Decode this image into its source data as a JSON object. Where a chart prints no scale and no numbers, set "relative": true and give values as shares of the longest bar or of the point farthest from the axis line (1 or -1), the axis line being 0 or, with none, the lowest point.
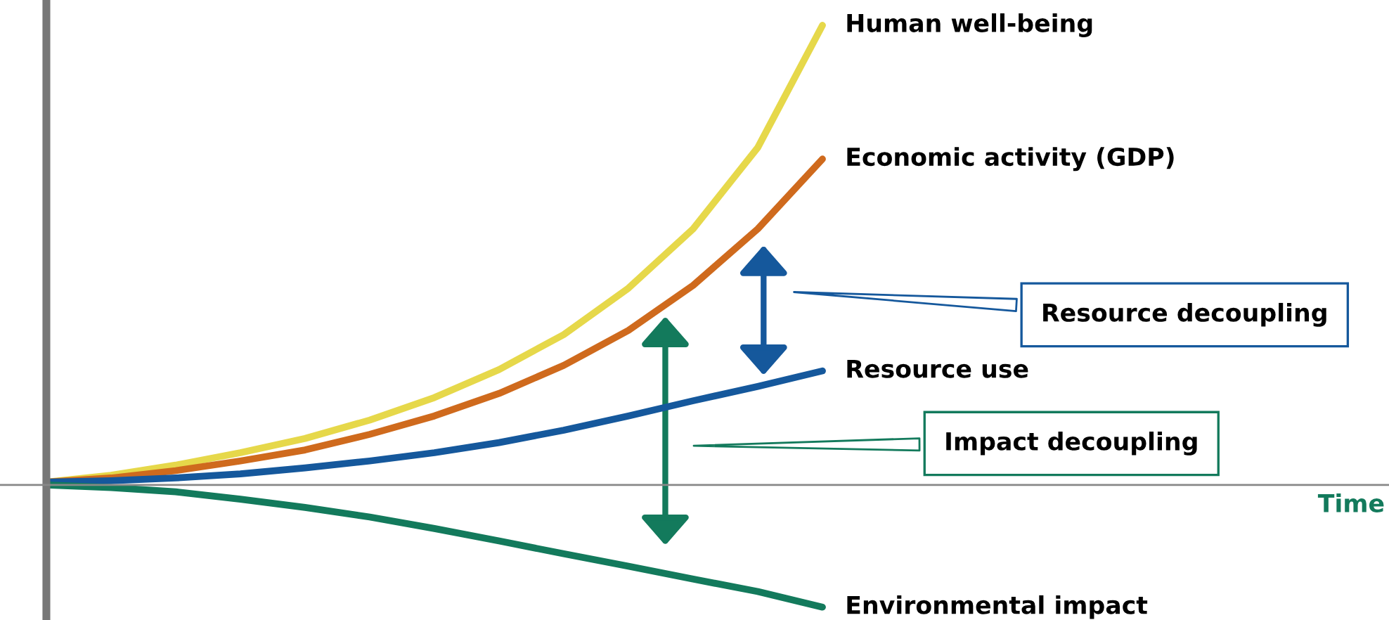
{
  "chart_data": {
    "type": "line",
    "relative": true,
    "categories": [
      null,
      null,
      null,
      null,
      null,
      null,
      null,
      null,
      null,
      null,
      null,
      null,
      null
    ],
    "series": [
      {
        "name": "Human well-being",
        "color": "#e6d84a",
        "values": [
          0.006,
          0.021,
          0.043,
          0.07,
          0.101,
          0.141,
          0.19,
          0.251,
          0.327,
          0.428,
          0.557,
          0.734,
          1
        ]
      },
      {
        "name": "Economic activity (GDP)",
        "color": "#cf6a1d",
        "values": [
          0.006,
          0.015,
          0.031,
          0.052,
          0.076,
          0.11,
          0.15,
          0.199,
          0.26,
          0.336,
          0.434,
          0.557,
          0.709
        ]
      },
      {
        "name": "Resource use",
        "color": "#15589c",
        "values": [
          0.006,
          0.009,
          0.015,
          0.024,
          0.037,
          0.052,
          0.07,
          0.092,
          0.119,
          0.15,
          0.183,
          0.214,
          0.248
        ]
      },
      {
        "name": "Environmental impact",
        "color": "#137a5c",
        "values": [
          0,
          -0.006,
          -0.015,
          -0.031,
          -0.049,
          -0.07,
          -0.095,
          -0.122,
          -0.15,
          -0.177,
          -0.205,
          -0.232,
          -0.266
        ]
      }
    ],
    "annotations": [
      "Resource decoupling",
      "Impact decoupling",
      "Time"
    ]
  }
}
